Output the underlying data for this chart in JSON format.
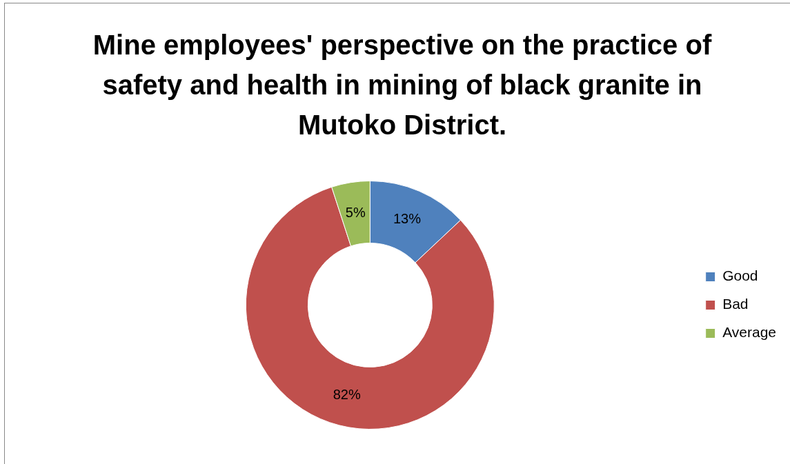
{
  "chart_data": {
    "type": "donut",
    "title": "Mine employees' perspective on the practice of safety and health in mining of black granite in Mutoko District.",
    "categories": [
      "Good",
      "Bad",
      "Average"
    ],
    "values": [
      13,
      82,
      5
    ],
    "colors": [
      "#4f81bd",
      "#c0504d",
      "#9bbb59"
    ],
    "value_labels": [
      "13%",
      "82%",
      "5%"
    ],
    "legend": "right"
  }
}
